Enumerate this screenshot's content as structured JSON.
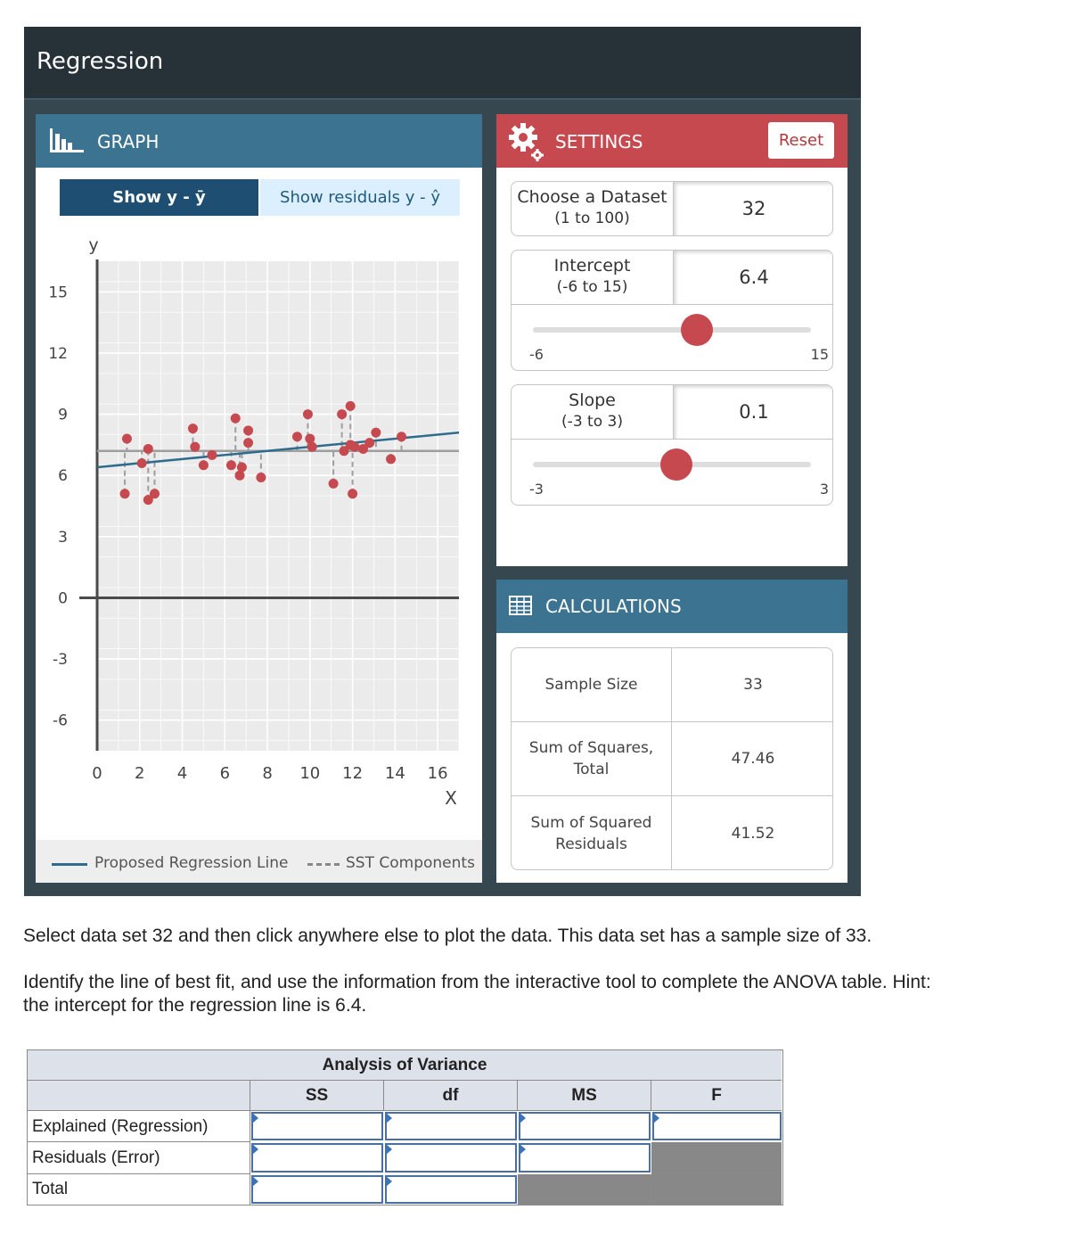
{
  "app": {
    "title": "Regression"
  },
  "graph": {
    "header": "GRAPH",
    "btn_show_ybar": "Show y - ȳ",
    "btn_show_residuals": "Show residuals y - ŷ",
    "legend": {
      "regression_line": "Proposed Regression Line",
      "sst_components": "SST Components"
    }
  },
  "settings": {
    "header": "SETTINGS",
    "reset_label": "Reset",
    "dataset": {
      "label": "Choose a Dataset",
      "range": "(1 to 100)",
      "value": "32"
    },
    "intercept": {
      "label": "Intercept",
      "range": "(-6 to 15)",
      "value": "6.4",
      "min": "-6",
      "max": "15",
      "fraction": 0.59
    },
    "slope": {
      "label": "Slope",
      "range": "(-3 to 3)",
      "value": "0.1",
      "min": "-3",
      "max": "3",
      "fraction": 0.517
    }
  },
  "calculations": {
    "header": "CALCULATIONS",
    "rows": [
      {
        "label": "Sample Size",
        "value": "33"
      },
      {
        "label": "Sum of Squares, Total",
        "value": "47.46"
      },
      {
        "label": "Sum of Squared Residuals",
        "value": "41.52"
      }
    ]
  },
  "instructions": {
    "line1": "Select data set 32 and then click anywhere else to plot the data. This data set has a sample size of 33.",
    "line2": "Identify the line of best fit, and use the information from the interactive tool to complete the ANOVA table. Hint:",
    "line3": "the intercept for the regression line is 6.4."
  },
  "anova": {
    "title": "Analysis of Variance",
    "columns": [
      "SS",
      "df",
      "MS",
      "F"
    ],
    "rows": [
      {
        "label": "Explained (Regression)"
      },
      {
        "label": "Residuals (Error)"
      },
      {
        "label": "Total"
      }
    ]
  },
  "chart_data": {
    "type": "scatter",
    "xlabel": "X",
    "ylabel": "y",
    "xlim": [
      0,
      17
    ],
    "ylim": [
      -7.5,
      16.5
    ],
    "xticks": [
      0,
      2,
      4,
      6,
      8,
      10,
      12,
      14,
      16
    ],
    "yticks": [
      15,
      12,
      9,
      6,
      3,
      0,
      -3,
      -6
    ],
    "mean_y": 7.2,
    "regression_line": {
      "intercept": 6.4,
      "slope": 0.1
    },
    "points": [
      [
        1.3,
        5.1
      ],
      [
        1.4,
        7.8
      ],
      [
        2.1,
        6.6
      ],
      [
        2.4,
        7.3
      ],
      [
        2.4,
        4.8
      ],
      [
        2.7,
        5.1
      ],
      [
        4.5,
        8.3
      ],
      [
        4.6,
        7.4
      ],
      [
        5.0,
        6.5
      ],
      [
        5.4,
        7.0
      ],
      [
        6.3,
        6.5
      ],
      [
        6.5,
        8.8
      ],
      [
        6.7,
        6.0
      ],
      [
        6.8,
        6.4
      ],
      [
        7.1,
        8.2
      ],
      [
        7.1,
        7.6
      ],
      [
        7.7,
        5.9
      ],
      [
        9.4,
        7.9
      ],
      [
        9.9,
        9.0
      ],
      [
        10.0,
        7.8
      ],
      [
        10.1,
        7.4
      ],
      [
        11.1,
        5.6
      ],
      [
        11.5,
        9.0
      ],
      [
        11.6,
        7.2
      ],
      [
        11.9,
        9.4
      ],
      [
        11.9,
        7.5
      ],
      [
        12.0,
        5.1
      ],
      [
        12.1,
        7.4
      ],
      [
        12.5,
        7.3
      ],
      [
        12.8,
        7.6
      ],
      [
        13.1,
        8.1
      ],
      [
        13.8,
        6.8
      ],
      [
        14.3,
        7.9
      ]
    ]
  }
}
